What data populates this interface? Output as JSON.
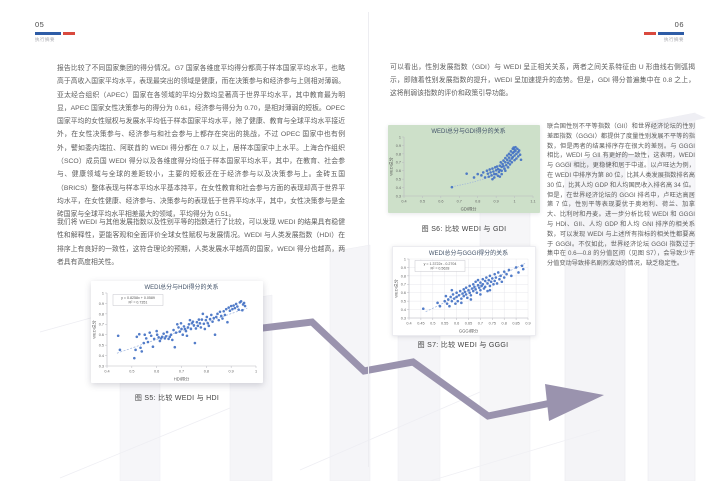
{
  "colors": {
    "accent_blue": "#2e5ca6",
    "accent_red": "#d9493e",
    "scatter_blue": "#4472c4",
    "trend_blue": "#9db3dc",
    "chart_green_bg": "#cde0c9",
    "arrow_purple": "#9a93ae",
    "chart_title": "#44546a"
  },
  "page_left": {
    "page_number": "05",
    "section_label": "执行摘要",
    "paragraph1": "报告比较了不同国家集团的得分情况。G7 国家各维度平均得分都高于样本国家平均水平，也略高于高收入国家平均水平，表现最突出的领域是健康，而在决策参与和经济参与上则相对薄弱。亚太经合组织（APEC）国家在各领域的平均分数均显著高于世界平均水平，其中教育最为明显，APEC 国家女性决策参与的得分为 0.61，经济参与得分为 0.70，是相对薄弱的短板。OPEC 国家平均的女性赋权与发展水平均低于样本国家平均水平，除了健康、教育与全球平均水平接近外，在女性决策参与、经济参与和社会参与上都存在突出的挑战，不过 OPEC 国家中也有例外，譬如委内瑞拉、阿联酋的 WEDI 得分都在 0.7 以上，居样本国家中上水平。上海合作组织（SCO）成员国 WEDI 得分以及各维度得分均低于样本国家平均水平，其中，在教育、社会参与、健康领域与全球的差距较小，主要的短板还在于经济参与以及决策参与上。金砖五国（BRICS）整体表现与样本平均水平基本持平，在女性教育和社会参与方面的表现却高于世界平均水平，在女性健康、经济参与、决策参与的表现低于世界平均水平，其中，女性决策参与是金砖国家与全球平均水平相差最大的领域，平均得分为 0.51。",
    "paragraph2": "我们将 WEDI 与其他发展指数以及性别平等的指数进行了比较，可以发现 WEDI 的结果具有稳健性和解释性，更能客观和全面评价全球女性赋权与发展情况。WEDI 与人类发展指数（HDI）在排序上有良好的一致性，这符合理论的预期，人类发展水平越高的国家，WEDI 得分也越高，两者具有高度相关性。",
    "figure5_caption": "图 S5: 比较 WEDI 与 HDI"
  },
  "page_right": {
    "page_number": "06",
    "section_label": "执行摘要",
    "paragraph1": "可以看出，性别发展指数（GDI）与 WEDI 呈正相关关系，两者之间关系特征由 U 形曲线右侧弧揭示，即随着性别发展指数的提升，WEDI 呈加速提升的态势。但是，GDI 得分普遍集中在 0.8 之上，这将削弱该指数的评价和政策引导功能。",
    "figure6_caption": "图 S6: 比较 WEDI 与 GDI",
    "paragraph2": "联合国性别不平等指数（GII）和世界经济论坛的性别差距指数（GGGI）都提供了度量性别发展不平等的指数，但是两者的结果排序存在很大的差别。与 GGGI 相比，WEDI 与 GII 有更好的一致性，这表明，WEDI 与 GGGI 相比，更稳健和居于中道。以卢旺达为例，在 WEDI 中排序为第 80 位，比其人类发展指数排名高 30 位，比其人均 GDP 和人均国民收入排名高 34 位。但是，在世界经济论坛的 GGGI 排名中，卢旺达高居第 7 位，性别平等表现要优于奥地利、荷兰、加拿大、比利时和丹麦。进一步分析比较 WEDI 和 GGGI 与 HDI、GII、人均 GDP 和人均 GNI 排序的相关系数，可以发现 WEDI 与上述所有指标的相关性都要高于 GGGI。不仅如此，世界经济论坛 GGGI 指数过于集中在 0.6—0.8 的分值区间（见图 S7），会导致少许分值变动导致排名剧烈波动的情况，缺乏稳定性。",
    "figure7_caption": "图 S7: 比较 WEDI 与 GGGI"
  },
  "chart_data": [
    {
      "id": "s5",
      "type": "scatter",
      "title": "WEDI总分与HDI得分的关系",
      "xlabel": "HDI得分",
      "ylabel": "WEDI总分",
      "xlim": [
        0.4,
        1.0
      ],
      "ylim": [
        0.3,
        1.0
      ],
      "xticks": [
        0.4,
        0.5,
        0.6,
        0.7,
        0.8,
        0.9,
        1
      ],
      "yticks": [
        0.3,
        0.4,
        0.5,
        0.6,
        0.7,
        0.8,
        0.9,
        1
      ],
      "grid": "none",
      "equation": "y = 0.8258x + 0.0589",
      "r_squared": "R² = 0.7351",
      "trendline": {
        "slope": 0.8258,
        "intercept": 0.0589,
        "x0": 0.44,
        "x1": 0.965
      },
      "points": [
        [
          0.445,
          0.59
        ],
        [
          0.452,
          0.455
        ],
        [
          0.51,
          0.375
        ],
        [
          0.515,
          0.455
        ],
        [
          0.52,
          0.58
        ],
        [
          0.53,
          0.605
        ],
        [
          0.535,
          0.475
        ],
        [
          0.54,
          0.44
        ],
        [
          0.548,
          0.52
        ],
        [
          0.552,
          0.6
        ],
        [
          0.558,
          0.565
        ],
        [
          0.565,
          0.53
        ],
        [
          0.572,
          0.62
        ],
        [
          0.578,
          0.59
        ],
        [
          0.585,
          0.485
        ],
        [
          0.59,
          0.56
        ],
        [
          0.6,
          0.635
        ],
        [
          0.602,
          0.6
        ],
        [
          0.608,
          0.575
        ],
        [
          0.613,
          0.54
        ],
        [
          0.618,
          0.565
        ],
        [
          0.622,
          0.58
        ],
        [
          0.628,
          0.61
        ],
        [
          0.633,
          0.565
        ],
        [
          0.638,
          0.585
        ],
        [
          0.642,
          0.625
        ],
        [
          0.648,
          0.56
        ],
        [
          0.653,
          0.58
        ],
        [
          0.658,
          0.6
        ],
        [
          0.663,
          0.55
        ],
        [
          0.668,
          0.645
        ],
        [
          0.673,
          0.48
        ],
        [
          0.678,
          0.62
        ],
        [
          0.683,
          0.7
        ],
        [
          0.688,
          0.67
        ],
        [
          0.693,
          0.63
        ],
        [
          0.698,
          0.71
        ],
        [
          0.7,
          0.655
        ],
        [
          0.705,
          0.6
        ],
        [
          0.71,
          0.68
        ],
        [
          0.714,
          0.655
        ],
        [
          0.718,
          0.635
        ],
        [
          0.722,
          0.59
        ],
        [
          0.726,
          0.67
        ],
        [
          0.73,
          0.7
        ],
        [
          0.734,
          0.74
        ],
        [
          0.738,
          0.655
        ],
        [
          0.742,
          0.71
        ],
        [
          0.746,
          0.725
        ],
        [
          0.75,
          0.69
        ],
        [
          0.754,
          0.52
        ],
        [
          0.758,
          0.66
        ],
        [
          0.762,
          0.72
        ],
        [
          0.766,
          0.685
        ],
        [
          0.77,
          0.745
        ],
        [
          0.774,
          0.71
        ],
        [
          0.778,
          0.67
        ],
        [
          0.782,
          0.745
        ],
        [
          0.786,
          0.8
        ],
        [
          0.79,
          0.705
        ],
        [
          0.794,
          0.655
        ],
        [
          0.798,
          0.74
        ],
        [
          0.802,
          0.77
        ],
        [
          0.806,
          0.71
        ],
        [
          0.81,
          0.685
        ],
        [
          0.815,
          0.75
        ],
        [
          0.82,
          0.79
        ],
        [
          0.825,
          0.725
        ],
        [
          0.83,
          0.76
        ],
        [
          0.835,
          0.6
        ],
        [
          0.84,
          0.77
        ],
        [
          0.845,
          0.8
        ],
        [
          0.85,
          0.74
        ],
        [
          0.855,
          0.82
        ],
        [
          0.86,
          0.78
        ],
        [
          0.865,
          0.755
        ],
        [
          0.87,
          0.825
        ],
        [
          0.875,
          0.79
        ],
        [
          0.88,
          0.845
        ],
        [
          0.885,
          0.72
        ],
        [
          0.89,
          0.86
        ],
        [
          0.895,
          0.83
        ],
        [
          0.9,
          0.875
        ],
        [
          0.905,
          0.845
        ],
        [
          0.91,
          0.88
        ],
        [
          0.915,
          0.855
        ],
        [
          0.92,
          0.895
        ],
        [
          0.925,
          0.87
        ],
        [
          0.93,
          0.84
        ],
        [
          0.935,
          0.91
        ],
        [
          0.94,
          0.92
        ],
        [
          0.945,
          0.835
        ],
        [
          0.948,
          0.89
        ],
        [
          0.952,
          0.905
        ],
        [
          0.956,
          0.875
        ]
      ]
    },
    {
      "id": "s6",
      "type": "scatter",
      "title": "WEDI总分与GDI得分的关系",
      "xlabel": "GDI得分",
      "ylabel": "WEDI总分",
      "xlim": [
        0.4,
        1.1
      ],
      "ylim": [
        0.3,
        1.0
      ],
      "xticks": [
        0.4,
        0.5,
        0.6,
        0.7,
        0.8,
        0.9,
        1,
        1.1
      ],
      "yticks": [
        0.3,
        0.4,
        0.5,
        0.6,
        0.7,
        0.8,
        0.9,
        1
      ],
      "grid": "none",
      "bg": "green",
      "trend_curve": [
        [
          0.66,
          0.41
        ],
        [
          0.75,
          0.45
        ],
        [
          0.83,
          0.5
        ],
        [
          0.89,
          0.55
        ],
        [
          0.94,
          0.61
        ],
        [
          0.98,
          0.68
        ],
        [
          1.01,
          0.76
        ]
      ],
      "points": [
        [
          0.66,
          0.405
        ],
        [
          0.74,
          0.565
        ],
        [
          0.78,
          0.52
        ],
        [
          0.8,
          0.56
        ],
        [
          0.82,
          0.545
        ],
        [
          0.83,
          0.58
        ],
        [
          0.84,
          0.52
        ],
        [
          0.85,
          0.6
        ],
        [
          0.855,
          0.565
        ],
        [
          0.86,
          0.53
        ],
        [
          0.865,
          0.615
        ],
        [
          0.87,
          0.58
        ],
        [
          0.875,
          0.545
        ],
        [
          0.88,
          0.5
        ],
        [
          0.88,
          0.625
        ],
        [
          0.885,
          0.59
        ],
        [
          0.89,
          0.56
        ],
        [
          0.89,
          0.52
        ],
        [
          0.895,
          0.64
        ],
        [
          0.9,
          0.605
        ],
        [
          0.9,
          0.56
        ],
        [
          0.905,
          0.65
        ],
        [
          0.91,
          0.62
        ],
        [
          0.91,
          0.54
        ],
        [
          0.915,
          0.585
        ],
        [
          0.92,
          0.66
        ],
        [
          0.92,
          0.61
        ],
        [
          0.92,
          0.53
        ],
        [
          0.925,
          0.7
        ],
        [
          0.93,
          0.645
        ],
        [
          0.93,
          0.6
        ],
        [
          0.93,
          0.56
        ],
        [
          0.935,
          0.68
        ],
        [
          0.94,
          0.72
        ],
        [
          0.94,
          0.655
        ],
        [
          0.945,
          0.625
        ],
        [
          0.95,
          0.75
        ],
        [
          0.95,
          0.7
        ],
        [
          0.95,
          0.6
        ],
        [
          0.955,
          0.665
        ],
        [
          0.96,
          0.78
        ],
        [
          0.96,
          0.73
        ],
        [
          0.965,
          0.695
        ],
        [
          0.965,
          0.64
        ],
        [
          0.97,
          0.8
        ],
        [
          0.97,
          0.755
        ],
        [
          0.975,
          0.72
        ],
        [
          0.975,
          0.675
        ],
        [
          0.98,
          0.83
        ],
        [
          0.98,
          0.785
        ],
        [
          0.985,
          0.745
        ],
        [
          0.985,
          0.7
        ],
        [
          0.99,
          0.86
        ],
        [
          0.99,
          0.81
        ],
        [
          0.99,
          0.76
        ],
        [
          0.995,
          0.875
        ],
        [
          0.995,
          0.82
        ],
        [
          1.0,
          0.85
        ],
        [
          1.0,
          0.78
        ],
        [
          1.0,
          0.725
        ],
        [
          1.005,
          0.88
        ],
        [
          1.005,
          0.835
        ],
        [
          1.01,
          0.8
        ],
        [
          1.01,
          0.745
        ],
        [
          1.015,
          0.86
        ],
        [
          1.02,
          0.82
        ],
        [
          1.02,
          0.77
        ],
        [
          1.025,
          0.84
        ],
        [
          1.03,
          0.79
        ],
        [
          1.035,
          0.73
        ]
      ]
    },
    {
      "id": "s7",
      "type": "scatter",
      "title": "WEDI总分与GGGI得分的关系",
      "xlabel": "GGGI得分",
      "ylabel": "WEDI总分",
      "xlim": [
        0.4,
        0.9
      ],
      "ylim": [
        0.3,
        1.0
      ],
      "xticks": [
        0.4,
        0.45,
        0.5,
        0.55,
        0.6,
        0.65,
        0.7,
        0.75,
        0.8,
        0.85,
        0.9
      ],
      "yticks": [
        0.3,
        0.4,
        0.5,
        0.6,
        0.7,
        0.8,
        0.9,
        1
      ],
      "grid": "both",
      "equation": "y = 1.3722x - 0.2704",
      "r_squared": "R² = 0.5628",
      "trendline": {
        "slope": 1.3722,
        "intercept": -0.2704,
        "x0": 0.47,
        "x1": 0.89
      },
      "points": [
        [
          0.46,
          0.41
        ],
        [
          0.52,
          0.48
        ],
        [
          0.53,
          0.44
        ],
        [
          0.55,
          0.5
        ],
        [
          0.555,
          0.56
        ],
        [
          0.56,
          0.47
        ],
        [
          0.565,
          0.52
        ],
        [
          0.57,
          0.44
        ],
        [
          0.575,
          0.55
        ],
        [
          0.58,
          0.5
        ],
        [
          0.58,
          0.63
        ],
        [
          0.585,
          0.58
        ],
        [
          0.59,
          0.53
        ],
        [
          0.595,
          0.47
        ],
        [
          0.6,
          0.6
        ],
        [
          0.6,
          0.55
        ],
        [
          0.605,
          0.5
        ],
        [
          0.61,
          0.57
        ],
        [
          0.615,
          0.62
        ],
        [
          0.62,
          0.53
        ],
        [
          0.62,
          0.48
        ],
        [
          0.625,
          0.59
        ],
        [
          0.63,
          0.64
        ],
        [
          0.63,
          0.56
        ],
        [
          0.635,
          0.61
        ],
        [
          0.64,
          0.66
        ],
        [
          0.64,
          0.58
        ],
        [
          0.645,
          0.54
        ],
        [
          0.65,
          0.63
        ],
        [
          0.655,
          0.68
        ],
        [
          0.655,
          0.6
        ],
        [
          0.66,
          0.57
        ],
        [
          0.66,
          0.52
        ],
        [
          0.665,
          0.65
        ],
        [
          0.67,
          0.7
        ],
        [
          0.67,
          0.62
        ],
        [
          0.675,
          0.67
        ],
        [
          0.68,
          0.73
        ],
        [
          0.68,
          0.64
        ],
        [
          0.685,
          0.6
        ],
        [
          0.69,
          0.69
        ],
        [
          0.69,
          0.75
        ],
        [
          0.695,
          0.66
        ],
        [
          0.7,
          0.72
        ],
        [
          0.7,
          0.63
        ],
        [
          0.7,
          0.58
        ],
        [
          0.705,
          0.68
        ],
        [
          0.71,
          0.76
        ],
        [
          0.71,
          0.7
        ],
        [
          0.715,
          0.65
        ],
        [
          0.72,
          0.74
        ],
        [
          0.72,
          0.67
        ],
        [
          0.725,
          0.78
        ],
        [
          0.73,
          0.71
        ],
        [
          0.73,
          0.62
        ],
        [
          0.735,
          0.75
        ],
        [
          0.74,
          0.8
        ],
        [
          0.74,
          0.68
        ],
        [
          0.74,
          0.63
        ],
        [
          0.745,
          0.73
        ],
        [
          0.75,
          0.77
        ],
        [
          0.755,
          0.7
        ],
        [
          0.76,
          0.82
        ],
        [
          0.76,
          0.74
        ],
        [
          0.765,
          0.78
        ],
        [
          0.77,
          0.71
        ],
        [
          0.775,
          0.84
        ],
        [
          0.78,
          0.76
        ],
        [
          0.785,
          0.8
        ],
        [
          0.79,
          0.73
        ],
        [
          0.8,
          0.85
        ],
        [
          0.8,
          0.78
        ],
        [
          0.81,
          0.82
        ],
        [
          0.82,
          0.87
        ],
        [
          0.83,
          0.8
        ],
        [
          0.85,
          0.9
        ],
        [
          0.86,
          0.84
        ],
        [
          0.875,
          0.92
        ],
        [
          0.88,
          0.88
        ]
      ]
    }
  ]
}
